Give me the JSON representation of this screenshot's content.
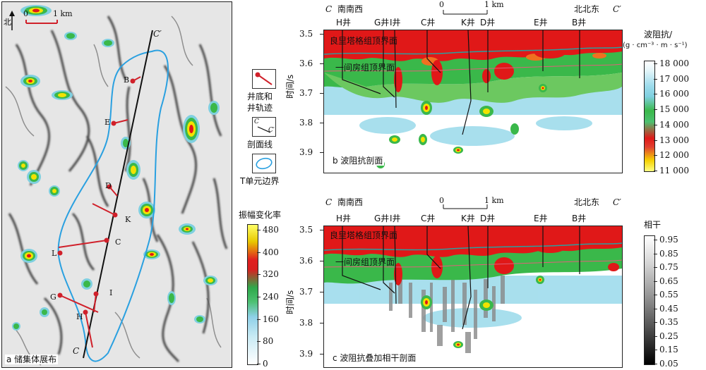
{
  "panel_a": {
    "north_label": "北",
    "scale_zero": "0",
    "scale_one": "1 km",
    "caption": "a 储集体展布",
    "section_start": "C",
    "section_end": "C′",
    "wells": [
      "B",
      "E",
      "D",
      "K",
      "C",
      "L",
      "I",
      "G",
      "H"
    ]
  },
  "legend_a": {
    "well_label_1": "井底和",
    "well_label_2": "井轨迹",
    "profile_c": "C",
    "profile_c2": "C′",
    "profile_label": "剖面线",
    "boundary_label": "T单元边界"
  },
  "amp_legend": {
    "title": "振幅变化率",
    "ticks": [
      "480",
      "400",
      "320",
      "240",
      "160",
      "80",
      "0"
    ]
  },
  "panel_b": {
    "left_end": "C",
    "left_dir": "南南西",
    "right_dir": "北北东",
    "right_end": "C′",
    "scale_zero": "0",
    "scale_one": "1 km",
    "wells": [
      "H井",
      "G井",
      "I井",
      "C井",
      "K井",
      "D井",
      "E井",
      "B井"
    ],
    "horizon_top": "良里塔格组顶界面",
    "horizon_bottom": "一间房组顶界面",
    "y_label": "时间/s",
    "y_ticks": [
      "3.5",
      "3.6",
      "3.7",
      "3.8",
      "3.9"
    ],
    "caption": "b 波阻抗剖面"
  },
  "impedance_legend": {
    "title": "波阻抗/",
    "unit": "(g · cm⁻³ · m · s⁻¹)",
    "ticks": [
      "18 000",
      "17 000",
      "16 000",
      "15 000",
      "14 000",
      "13 000",
      "12 000",
      "11 000"
    ]
  },
  "panel_c": {
    "left_end": "C",
    "left_dir": "南南西",
    "right_dir": "北北东",
    "right_end": "C′",
    "scale_zero": "0",
    "scale_one": "1 km",
    "wells": [
      "H井",
      "G井",
      "I井",
      "C井",
      "K井",
      "D井",
      "E井",
      "B井"
    ],
    "horizon_top": "良里塔格组顶界面",
    "horizon_bottom": "一间房组顶界面",
    "y_label": "时间/s",
    "y_ticks": [
      "3.5",
      "3.6",
      "3.7",
      "3.8",
      "3.9"
    ],
    "caption": "c 波阻抗叠加相干剖面"
  },
  "coherence_legend": {
    "title": "相干",
    "ticks": [
      "0.95",
      "0.85",
      "0.75",
      "0.65",
      "0.55",
      "0.45",
      "0.35",
      "0.25",
      "0.15",
      "0.05"
    ]
  }
}
